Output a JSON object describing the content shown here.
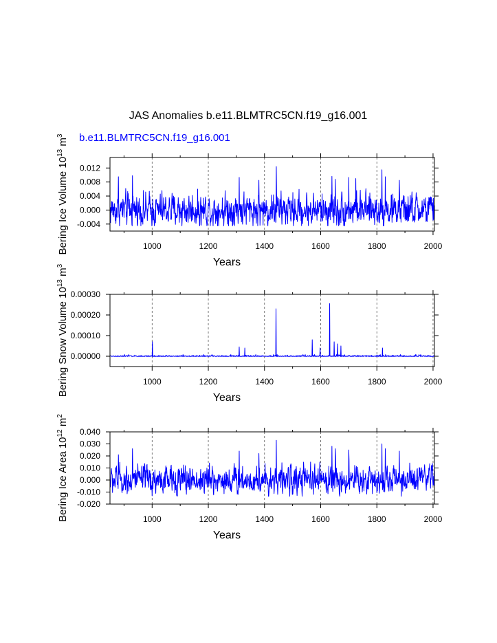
{
  "figure": {
    "title": "JAS Anomalies b.e11.BLMTRC5CN.f19_g16.001",
    "legend_label": "b.e11.BLMTRC5CN.f19_g16.001",
    "line_color": "#0000ff"
  },
  "chart_data": [
    {
      "type": "line",
      "title": "JAS Anomalies b.e11.BLMTRC5CN.f19_g16.001",
      "series_name": "b.e11.BLMTRC5CN.f19_g16.001",
      "xlabel": "Years",
      "ylabel": {
        "text": "Bering Ice Volume",
        "unit_base": "10",
        "unit_exp": "13",
        "unit": "m",
        "unit_unit_exp": "3"
      },
      "xlim": [
        850,
        2005
      ],
      "ylim": [
        -0.006,
        0.015
      ],
      "xticks": [
        1000,
        1200,
        1400,
        1600,
        1800,
        2000
      ],
      "yticks": [
        -0.004,
        0.0,
        0.004,
        0.008,
        0.012
      ],
      "ytick_labels": [
        "-0.004",
        "0.000",
        "0.004",
        "0.008",
        "0.012"
      ],
      "grid": "vertical dashed",
      "x": [
        850,
        2005
      ],
      "noise": {
        "base": 0.0,
        "sd": 0.0022,
        "min": -0.0045,
        "max": 0.0078,
        "ar": 0.35
      },
      "peaks": [
        [
          880,
          0.0095
        ],
        [
          930,
          0.0098
        ],
        [
          1310,
          0.0093
        ],
        [
          1380,
          0.0085
        ],
        [
          1442,
          0.0124
        ],
        [
          1640,
          0.0096
        ],
        [
          1652,
          0.0088
        ],
        [
          1700,
          0.0093
        ],
        [
          1725,
          0.009
        ],
        [
          1818,
          0.0115
        ],
        [
          1830,
          0.0095
        ],
        [
          1880,
          0.0085
        ]
      ]
    },
    {
      "type": "line",
      "title": "",
      "series_name": "b.e11.BLMTRC5CN.f19_g16.001",
      "xlabel": "Years",
      "ylabel": {
        "text": "Bering Snow Volume",
        "unit_base": "10",
        "unit_exp": "13",
        "unit": "m",
        "unit_unit_exp": "3"
      },
      "xlim": [
        850,
        2005
      ],
      "ylim": [
        -5e-05,
        0.0003
      ],
      "xticks": [
        1000,
        1200,
        1400,
        1600,
        1800,
        2000
      ],
      "yticks": [
        0.0,
        0.0001,
        0.0002,
        0.0003
      ],
      "ytick_labels": [
        "0.00000",
        "0.00010",
        "0.00020",
        "0.00030"
      ],
      "grid": "vertical dashed",
      "x": [
        850,
        2005
      ],
      "noise": {
        "base": 0.0,
        "sd": 2e-06,
        "min": -1e-06,
        "max": 8e-06,
        "ar": 0.0,
        "spike_prob": 0.035,
        "spike_max": 4e-05
      },
      "peaks": [
        [
          1001,
          7e-05
        ],
        [
          1310,
          4.5e-05
        ],
        [
          1330,
          4e-05
        ],
        [
          1441,
          0.00023
        ],
        [
          1570,
          8e-05
        ],
        [
          1598,
          4e-05
        ],
        [
          1632,
          0.000255
        ],
        [
          1648,
          7e-05
        ],
        [
          1660,
          6e-05
        ],
        [
          1672,
          5e-05
        ],
        [
          1820,
          4e-05
        ]
      ]
    },
    {
      "type": "line",
      "title": "",
      "series_name": "b.e11.BLMTRC5CN.f19_g16.001",
      "xlabel": "Years",
      "ylabel": {
        "text": "Bering Ice Area",
        "unit_base": "10",
        "unit_exp": "12",
        "unit": "m",
        "unit_unit_exp": "2"
      },
      "xlim": [
        850,
        2005
      ],
      "ylim": [
        -0.02,
        0.04
      ],
      "xticks": [
        1000,
        1200,
        1400,
        1600,
        1800,
        2000
      ],
      "yticks": [
        -0.02,
        -0.01,
        0.0,
        0.01,
        0.02,
        0.03,
        0.04
      ],
      "ytick_labels": [
        "-0.020",
        "-0.010",
        "0.000",
        "0.010",
        "0.020",
        "0.030",
        "0.040"
      ],
      "grid": "vertical dashed",
      "x": [
        850,
        2005
      ],
      "noise": {
        "base": 0.0,
        "sd": 0.0055,
        "min": -0.0135,
        "max": 0.02,
        "ar": 0.35
      },
      "peaks": [
        [
          880,
          0.021
        ],
        [
          930,
          0.026
        ],
        [
          1310,
          0.024
        ],
        [
          1380,
          0.022
        ],
        [
          1442,
          0.033
        ],
        [
          1640,
          0.028
        ],
        [
          1652,
          0.026
        ],
        [
          1700,
          0.025
        ],
        [
          1818,
          0.03
        ],
        [
          1830,
          0.026
        ],
        [
          1880,
          0.024
        ]
      ]
    }
  ]
}
